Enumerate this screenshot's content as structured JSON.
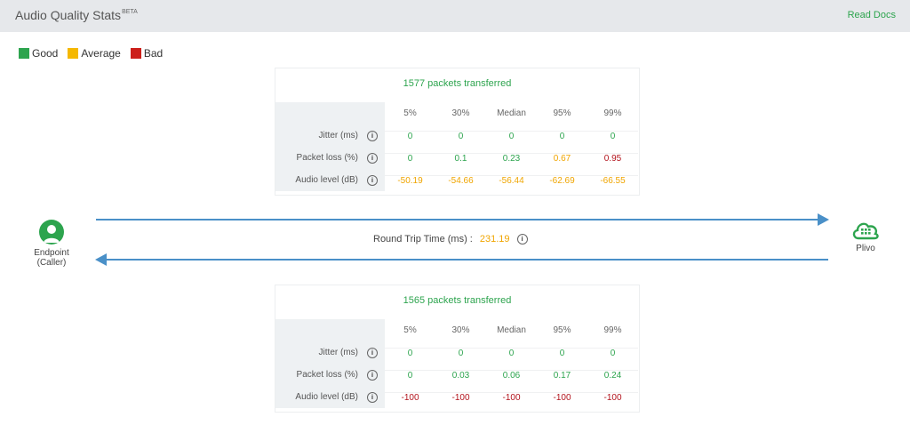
{
  "header": {
    "title": "Audio Quality Stats",
    "badge": "BETA",
    "read_docs": "Read Docs"
  },
  "legend": [
    {
      "label": "Good",
      "color": "#2da44e"
    },
    {
      "label": "Average",
      "color": "#f5b800"
    },
    {
      "label": "Bad",
      "color": "#cc1f1a"
    }
  ],
  "colors": {
    "good": "#2da44e",
    "average": "#f0a500",
    "bad": "#b3141d",
    "arrow": "#4a90c8"
  },
  "columns": [
    "5%",
    "30%",
    "Median",
    "95%",
    "99%"
  ],
  "row_labels": {
    "jitter": "Jitter (ms)",
    "packet_loss": "Packet loss (%)",
    "audio_level": "Audio level (dB)"
  },
  "info_icon": "info-icon",
  "outbound": {
    "packets": "1577 packets transferred",
    "jitter": [
      "0",
      "0",
      "0",
      "0",
      "0"
    ],
    "packet_loss": [
      "0",
      "0.1",
      "0.23",
      "0.67",
      "0.95"
    ],
    "audio_level": [
      "-50.19",
      "-54.66",
      "-56.44",
      "-62.69",
      "-66.55"
    ]
  },
  "inbound": {
    "packets": "1565 packets transferred",
    "jitter": [
      "0",
      "0",
      "0",
      "0",
      "0"
    ],
    "packet_loss": [
      "0",
      "0.03",
      "0.06",
      "0.17",
      "0.24"
    ],
    "audio_level": [
      "-100",
      "-100",
      "-100",
      "-100",
      "-100"
    ]
  },
  "rtt": {
    "label": "Round Trip Time (ms) :",
    "value": "231.19"
  },
  "endpoint": {
    "line1": "Endpoint",
    "line2": "(Caller)"
  },
  "plivo": {
    "label": "Plivo"
  }
}
